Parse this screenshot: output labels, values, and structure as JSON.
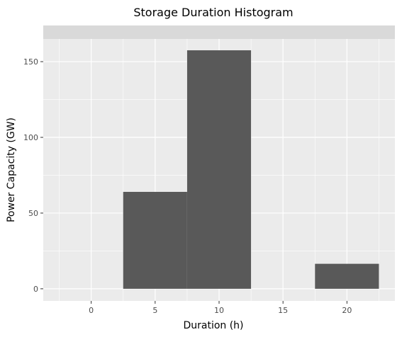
{
  "chart_data": {
    "type": "bar",
    "title": "Storage Duration Histogram",
    "xlabel": "Duration (h)",
    "ylabel": "Power Capacity (GW)",
    "bins": [
      {
        "x0": 2.5,
        "x1": 7.5,
        "value": 64
      },
      {
        "x0": 7.5,
        "x1": 12.5,
        "value": 157.5
      },
      {
        "x0": 17.5,
        "x1": 22.5,
        "value": 16.5
      }
    ],
    "xlim": [
      -3.75,
      23.75
    ],
    "ylim": [
      -8,
      165
    ],
    "xticks": [
      0,
      5,
      10,
      15,
      20
    ],
    "yticks": [
      0,
      50,
      100,
      150
    ],
    "grid": true,
    "facet_strip": true,
    "colors": {
      "panel": "#EBEBEB",
      "grid_major": "#FFFFFF",
      "strip": "#D9D9D9",
      "bar": "#595959",
      "tick": "#333333"
    }
  }
}
